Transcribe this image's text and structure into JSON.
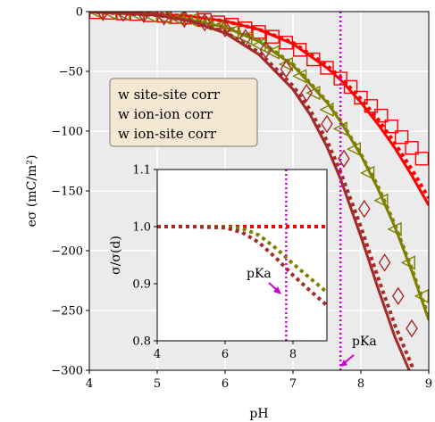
{
  "chart_data": [
    {
      "type": "line",
      "xlabel": "pH",
      "ylabel": "eσ  (mC/m²)",
      "xlim": [
        4,
        9
      ],
      "ylim": [
        -300,
        0
      ],
      "xticks": [
        "4",
        "5",
        "6",
        "7",
        "8",
        "9"
      ],
      "yticks": [
        "0",
        "−50",
        "−100",
        "−150",
        "−200",
        "−250",
        "−300"
      ],
      "grid": true,
      "legend_placement": "upper-left",
      "legend": [
        "w site-site corr",
        "w ion-ion corr",
        "w ion-site corr"
      ],
      "vline_x": 7.7,
      "vline_color": "#cc00cc",
      "annotation": {
        "text": "pKa",
        "x": 8.05,
        "y": -288
      },
      "series": [
        {
          "color": "#ff0000",
          "marker": "square",
          "x": [
            4.0,
            5.0,
            5.5,
            6.0,
            6.5,
            7.0,
            7.5,
            7.7,
            8.0,
            8.25,
            8.5,
            8.75,
            9.0
          ],
          "solid": [
            -0.3,
            -2,
            -4,
            -8,
            -15,
            -27,
            -47,
            -57,
            -76,
            -94,
            -114,
            -137,
            -162
          ],
          "dotted": [
            -0.3,
            -2,
            -4,
            -8,
            -15,
            -26,
            -45,
            -55,
            -73,
            -90,
            -110,
            -132,
            -156
          ],
          "markers_x": [
            4.1,
            4.3,
            4.5,
            4.7,
            4.9,
            5.1,
            5.3,
            5.5,
            5.7,
            5.9,
            6.1,
            6.3,
            6.5,
            6.7,
            6.9,
            7.1,
            7.3,
            7.5,
            7.7,
            7.85,
            8.0,
            8.15,
            8.3,
            8.45,
            8.6,
            8.75,
            8.9
          ],
          "markers_y": [
            -0.5,
            -1,
            -1.5,
            -2,
            -3,
            -3.5,
            -4.5,
            -5,
            -7,
            -9,
            -11,
            -14,
            -17,
            -21,
            -26,
            -32,
            -40,
            -47,
            -56,
            -63,
            -72,
            -79,
            -87,
            -96,
            -105,
            -114,
            -123
          ]
        },
        {
          "color": "#808000",
          "marker": "triangle-left",
          "x": [
            4.0,
            5.0,
            5.5,
            6.0,
            6.5,
            7.0,
            7.5,
            7.7,
            8.0,
            8.25,
            8.5,
            8.75,
            9.0
          ],
          "solid": [
            -0.3,
            -3,
            -7,
            -13,
            -25,
            -45,
            -76,
            -92,
            -120,
            -148,
            -180,
            -217,
            -258
          ],
          "dotted": [
            -0.3,
            -3,
            -6,
            -12,
            -24,
            -44,
            -75,
            -91,
            -119,
            -146,
            -178,
            -215,
            -256
          ],
          "markers_x": [
            4.1,
            4.3,
            4.5,
            4.7,
            4.9,
            5.1,
            5.3,
            5.5,
            5.7,
            5.9,
            6.1,
            6.3,
            6.5,
            6.7,
            6.9,
            7.1,
            7.3,
            7.5,
            7.7,
            7.9,
            8.1,
            8.3,
            8.5,
            8.7,
            8.9
          ],
          "markers_y": [
            -0.5,
            -1,
            -2,
            -2.5,
            -3.5,
            -5,
            -6,
            -7,
            -10,
            -13,
            -17,
            -22,
            -28,
            -34,
            -44,
            -54,
            -68,
            -82,
            -98,
            -115,
            -135,
            -158,
            -182,
            -210,
            -238
          ]
        },
        {
          "color": "#a52a2a",
          "marker": "diamond",
          "x": [
            4.0,
            5.0,
            5.5,
            6.0,
            6.5,
            7.0,
            7.25,
            7.5,
            7.7,
            8.0,
            8.25,
            8.5,
            8.75,
            8.85
          ],
          "solid": [
            -0.3,
            -3,
            -8,
            -18,
            -36,
            -65,
            -86,
            -113,
            -140,
            -188,
            -231,
            -272,
            -305,
            -320
          ],
          "dotted": [
            -0.3,
            -3,
            -8,
            -17,
            -34,
            -62,
            -82,
            -108,
            -134,
            -180,
            -222,
            -262,
            -296,
            -310
          ],
          "markers_x": [
            4.2,
            4.5,
            4.8,
            5.1,
            5.4,
            5.7,
            6.0,
            6.3,
            6.6,
            6.9,
            7.2,
            7.5,
            7.75,
            8.05,
            8.35,
            8.55,
            8.75
          ],
          "markers_y": [
            -0.5,
            -1,
            -2,
            -4,
            -6,
            -9,
            -14,
            -22,
            -32,
            -48,
            -68,
            -94,
            -123,
            -165,
            -210,
            -238,
            -265
          ]
        }
      ]
    },
    {
      "type": "line",
      "xlabel": "",
      "ylabel": "σ/σ(d)",
      "xlim": [
        4,
        9
      ],
      "ylim": [
        0.8,
        1.1
      ],
      "xticks": [
        "4",
        "6",
        "8"
      ],
      "yticks": [
        "0.8",
        "0.9",
        "1.0",
        "1.1"
      ],
      "grid": false,
      "vline_x": 7.8,
      "annotation": {
        "text": "pKa",
        "x": 7.75,
        "y": 0.91
      },
      "series": [
        {
          "color": "#ff0000",
          "x": [
            4.0,
            9.0
          ],
          "y": [
            1.0,
            1.0
          ]
        },
        {
          "color": "#808000",
          "x": [
            4.0,
            5.0,
            6.0,
            6.5,
            7.0,
            7.5,
            8.0,
            8.5,
            9.0
          ],
          "y": [
            1.0,
            1.0,
            1.0,
            0.997,
            0.985,
            0.962,
            0.935,
            0.91,
            0.885
          ]
        },
        {
          "color": "#a52a2a",
          "x": [
            4.0,
            5.0,
            6.0,
            6.5,
            7.0,
            7.5,
            8.0,
            8.5,
            9.0
          ],
          "y": [
            1.0,
            1.0,
            0.998,
            0.99,
            0.972,
            0.945,
            0.915,
            0.888,
            0.862
          ]
        }
      ]
    }
  ]
}
